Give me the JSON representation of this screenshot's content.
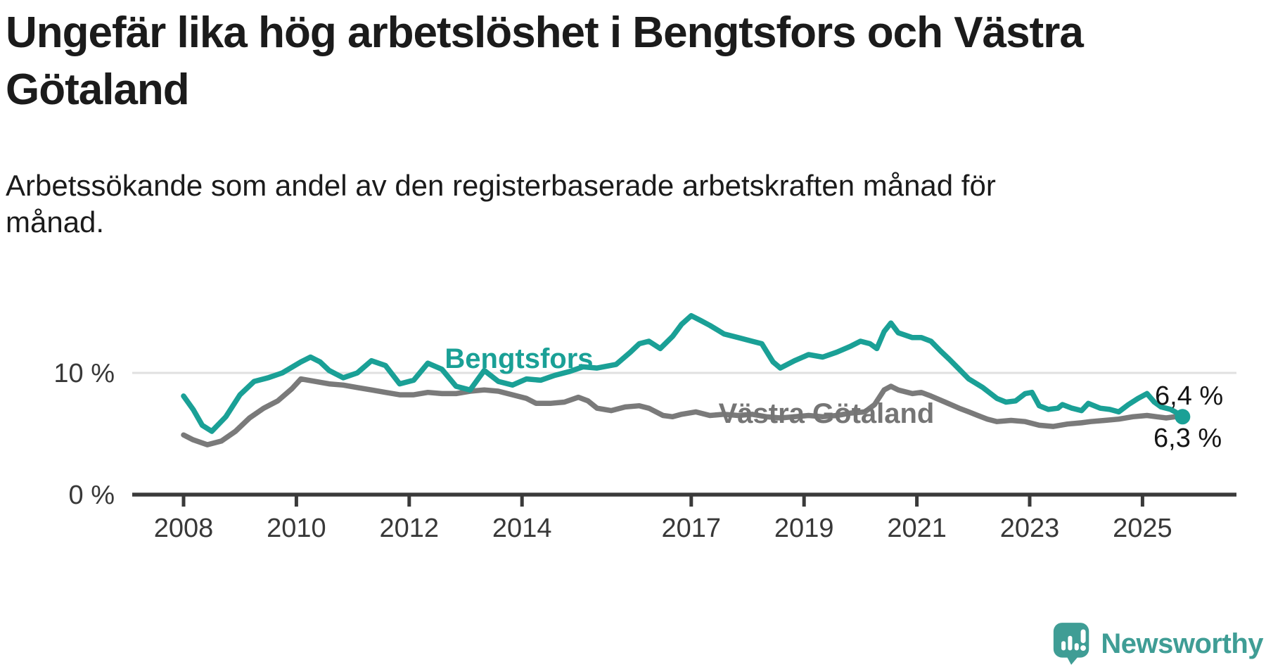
{
  "header": {
    "title": "Ungefär lika hög arbetslöshet i Bengtsfors och Västra Götaland",
    "title_lines": [
      "Ungefär lika hög arbetslöshet i Bengtsfors och Västra",
      "Götaland"
    ],
    "subtitle": "Arbetssökande som andel av den registerbaserade arbetskraften månad för månad.",
    "subtitle_lines": [
      "Arbetssökande som andel av den registerbaserade arbetskraften månad för",
      "månad."
    ]
  },
  "colors": {
    "bengtsfors": "#1aa096",
    "vastra_gotaland": "#7a7a7a",
    "axis": "#3a3a3a",
    "tick_label": "#383838",
    "gridline": "#e0e0e0",
    "end_label": "#151515",
    "logo": "#3f9d95"
  },
  "chart_data": {
    "type": "line",
    "title": "Ungefär lika hög arbetslöshet i Bengtsfors och Västra Götaland",
    "xlabel": "",
    "ylabel": "Arbetssökande som andel av den registerbaserade arbetskraften (%)",
    "unit": "%",
    "grid": "single horizontal gridline at 10 %",
    "legend_position": "inline labels on lines",
    "x_axis": {
      "ticks": [
        2008,
        2010,
        2012,
        2014,
        2017,
        2019,
        2021,
        2023,
        2025
      ],
      "range": [
        2007.8,
        2026.0
      ]
    },
    "y_axis": {
      "ticks": [
        {
          "value": 0,
          "label": "0 %"
        },
        {
          "value": 10,
          "label": "10 %"
        }
      ],
      "range": [
        0,
        15.5
      ]
    },
    "series": [
      {
        "name": "Bengtsfors",
        "color": "#1aa096",
        "end_label": "6,4 %",
        "last_value": 6.4,
        "x": [
          2008.0,
          2008.17,
          2008.33,
          2008.5,
          2008.75,
          2009.0,
          2009.25,
          2009.5,
          2009.75,
          2010.08,
          2010.25,
          2010.42,
          2010.58,
          2010.83,
          2011.08,
          2011.33,
          2011.58,
          2011.83,
          2012.08,
          2012.33,
          2012.58,
          2012.83,
          2013.08,
          2013.33,
          2013.58,
          2013.83,
          2014.08,
          2014.33,
          2014.58,
          2014.83,
          2015.08,
          2015.33,
          2015.67,
          2015.92,
          2016.08,
          2016.25,
          2016.45,
          2016.67,
          2016.83,
          2017.0,
          2017.17,
          2017.33,
          2017.58,
          2017.83,
          2018.08,
          2018.25,
          2018.45,
          2018.58,
          2018.83,
          2019.08,
          2019.33,
          2019.58,
          2019.83,
          2020.0,
          2020.17,
          2020.29,
          2020.42,
          2020.54,
          2020.67,
          2020.92,
          2021.08,
          2021.25,
          2021.42,
          2021.58,
          2021.75,
          2021.92,
          2022.17,
          2022.42,
          2022.58,
          2022.75,
          2022.92,
          2023.04,
          2023.17,
          2023.33,
          2023.5,
          2023.58,
          2023.75,
          2023.92,
          2024.04,
          2024.25,
          2024.42,
          2024.58,
          2024.75,
          2024.92,
          2025.08,
          2025.21,
          2025.33,
          2025.5,
          2025.58,
          2025.71
        ],
        "values": [
          8.1,
          7.0,
          5.7,
          5.2,
          6.4,
          8.2,
          9.3,
          9.6,
          10.0,
          10.9,
          11.3,
          10.9,
          10.2,
          9.6,
          10.0,
          11.0,
          10.6,
          9.1,
          9.4,
          10.8,
          10.3,
          8.9,
          8.6,
          10.2,
          9.3,
          9.0,
          9.5,
          9.4,
          9.8,
          10.1,
          10.5,
          10.4,
          10.7,
          11.7,
          12.4,
          12.6,
          12.0,
          13.0,
          14.0,
          14.7,
          14.3,
          13.9,
          13.2,
          12.9,
          12.6,
          12.4,
          10.9,
          10.4,
          11.0,
          11.5,
          11.3,
          11.7,
          12.2,
          12.6,
          12.4,
          12.0,
          13.4,
          14.1,
          13.3,
          12.9,
          12.9,
          12.6,
          11.8,
          11.1,
          10.3,
          9.5,
          8.8,
          7.9,
          7.6,
          7.7,
          8.3,
          8.4,
          7.3,
          7.0,
          7.1,
          7.4,
          7.1,
          6.9,
          7.5,
          7.1,
          7.0,
          6.8,
          7.4,
          7.9,
          8.3,
          7.6,
          7.2,
          7.0,
          6.8,
          6.4
        ]
      },
      {
        "name": "Västra Götaland",
        "color": "#7a7a7a",
        "end_label": "6,3 %",
        "last_value": 6.3,
        "x": [
          2008.0,
          2008.17,
          2008.42,
          2008.67,
          2008.92,
          2009.17,
          2009.42,
          2009.67,
          2009.92,
          2010.08,
          2010.33,
          2010.58,
          2010.83,
          2011.08,
          2011.33,
          2011.58,
          2011.83,
          2012.08,
          2012.33,
          2012.58,
          2012.83,
          2013.08,
          2013.33,
          2013.58,
          2013.83,
          2014.08,
          2014.25,
          2014.5,
          2014.75,
          2015.0,
          2015.17,
          2015.33,
          2015.58,
          2015.83,
          2016.08,
          2016.25,
          2016.5,
          2016.67,
          2016.83,
          2017.08,
          2017.33,
          2017.58,
          2017.83,
          2018.08,
          2018.33,
          2018.58,
          2018.83,
          2019.08,
          2019.33,
          2019.58,
          2019.83,
          2020.08,
          2020.25,
          2020.42,
          2020.54,
          2020.67,
          2020.92,
          2021.08,
          2021.25,
          2021.5,
          2021.75,
          2021.92,
          2022.08,
          2022.25,
          2022.42,
          2022.67,
          2022.92,
          2023.17,
          2023.42,
          2023.67,
          2023.92,
          2024.08,
          2024.33,
          2024.58,
          2024.83,
          2025.08,
          2025.25,
          2025.42,
          2025.58,
          2025.71
        ],
        "values": [
          4.9,
          4.5,
          4.1,
          4.4,
          5.2,
          6.3,
          7.1,
          7.7,
          8.7,
          9.5,
          9.3,
          9.1,
          9.0,
          8.8,
          8.6,
          8.4,
          8.2,
          8.2,
          8.4,
          8.3,
          8.3,
          8.5,
          8.6,
          8.5,
          8.2,
          7.9,
          7.5,
          7.5,
          7.6,
          8.0,
          7.7,
          7.1,
          6.9,
          7.2,
          7.3,
          7.1,
          6.5,
          6.4,
          6.6,
          6.8,
          6.5,
          6.6,
          6.5,
          6.6,
          6.4,
          6.3,
          6.4,
          6.5,
          6.4,
          6.5,
          6.7,
          6.8,
          7.4,
          8.6,
          8.9,
          8.6,
          8.3,
          8.4,
          8.1,
          7.6,
          7.1,
          6.8,
          6.5,
          6.2,
          6.0,
          6.1,
          6.0,
          5.7,
          5.6,
          5.8,
          5.9,
          6.0,
          6.1,
          6.2,
          6.4,
          6.5,
          6.4,
          6.3,
          6.4,
          6.3
        ]
      }
    ]
  },
  "footer": {
    "brand": "Newsworthy"
  }
}
